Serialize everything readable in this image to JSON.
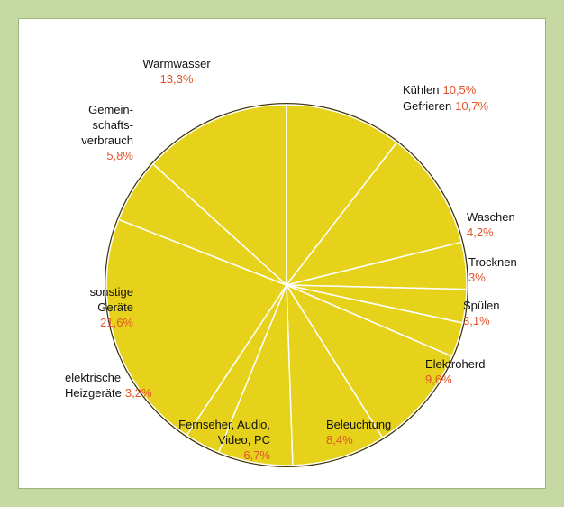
{
  "chart_data": {
    "type": "pie",
    "categories": [
      "Warmwasser",
      "Kühlen",
      "Gefrieren",
      "Waschen",
      "Trocknen",
      "Spülen",
      "Elektroherd",
      "Beleuchtung",
      "Fernseher, Audio,\nVideo, PC",
      "elektrische\nHeizgeräte",
      "sonstige\nGeräte",
      "Gemein-\nschafts-\nverbrauch"
    ],
    "values": [
      13.3,
      10.5,
      10.7,
      4.2,
      3,
      3.1,
      9.6,
      8.4,
      6.7,
      3.2,
      21.6,
      5.8
    ],
    "value_labels": [
      "13,3%",
      "10,5%",
      "10,7%",
      "4,2%",
      "3%",
      "3,1%",
      "9,6%",
      "8,4%",
      "6,7%",
      "3,2%",
      "21,6%",
      "5,8%"
    ],
    "color": "#e6d21a",
    "label_color": "#e0542c"
  }
}
